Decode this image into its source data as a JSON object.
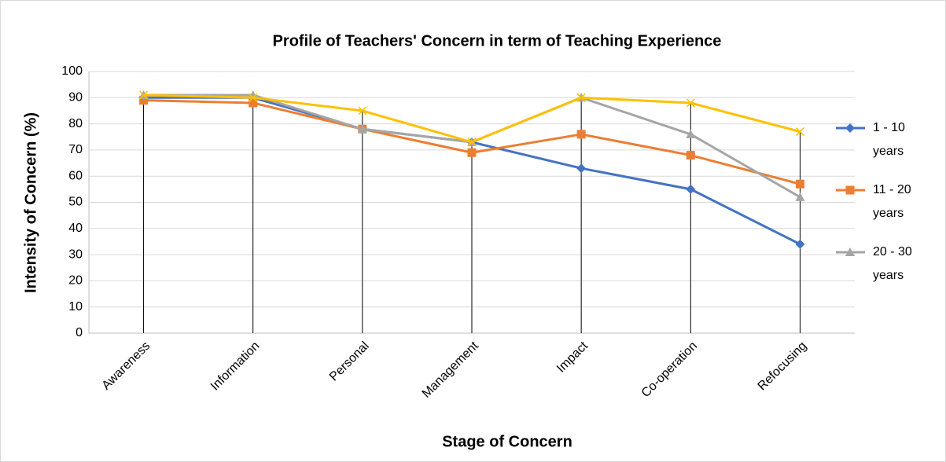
{
  "chart_data": {
    "type": "line",
    "title": "Profile of Teachers' Concern in term of Teaching Experience",
    "x_label": "Stage of Concern",
    "y_label": "Intensity of Concern (%)",
    "categories": [
      "Awareness",
      "Information",
      "Personal",
      "Management",
      "Impact",
      "Co-operation",
      "Refocusing"
    ],
    "series": [
      {
        "name": "1 - 10 years",
        "color": "#4472c4",
        "marker": "diamond",
        "values": [
          90,
          90,
          78,
          73,
          63,
          55,
          34
        ]
      },
      {
        "name": "11 - 20 years",
        "color": "#ed7d31",
        "marker": "square",
        "values": [
          89,
          88,
          78,
          69,
          76,
          68,
          57
        ]
      },
      {
        "name": "20 - 30 years",
        "color": "#a5a5a5",
        "marker": "triangle",
        "values": [
          91,
          91,
          78,
          73,
          90,
          76,
          52
        ]
      },
      {
        "color": "#ffc000",
        "marker": "x",
        "values": [
          91,
          90,
          85,
          73,
          90,
          88,
          77
        ]
      }
    ],
    "ylim": [
      0,
      100
    ],
    "yticks": [
      0,
      10,
      20,
      30,
      40,
      50,
      60,
      70,
      80,
      90,
      100
    ],
    "grid": true,
    "drop_lines": true,
    "legend": "right"
  }
}
